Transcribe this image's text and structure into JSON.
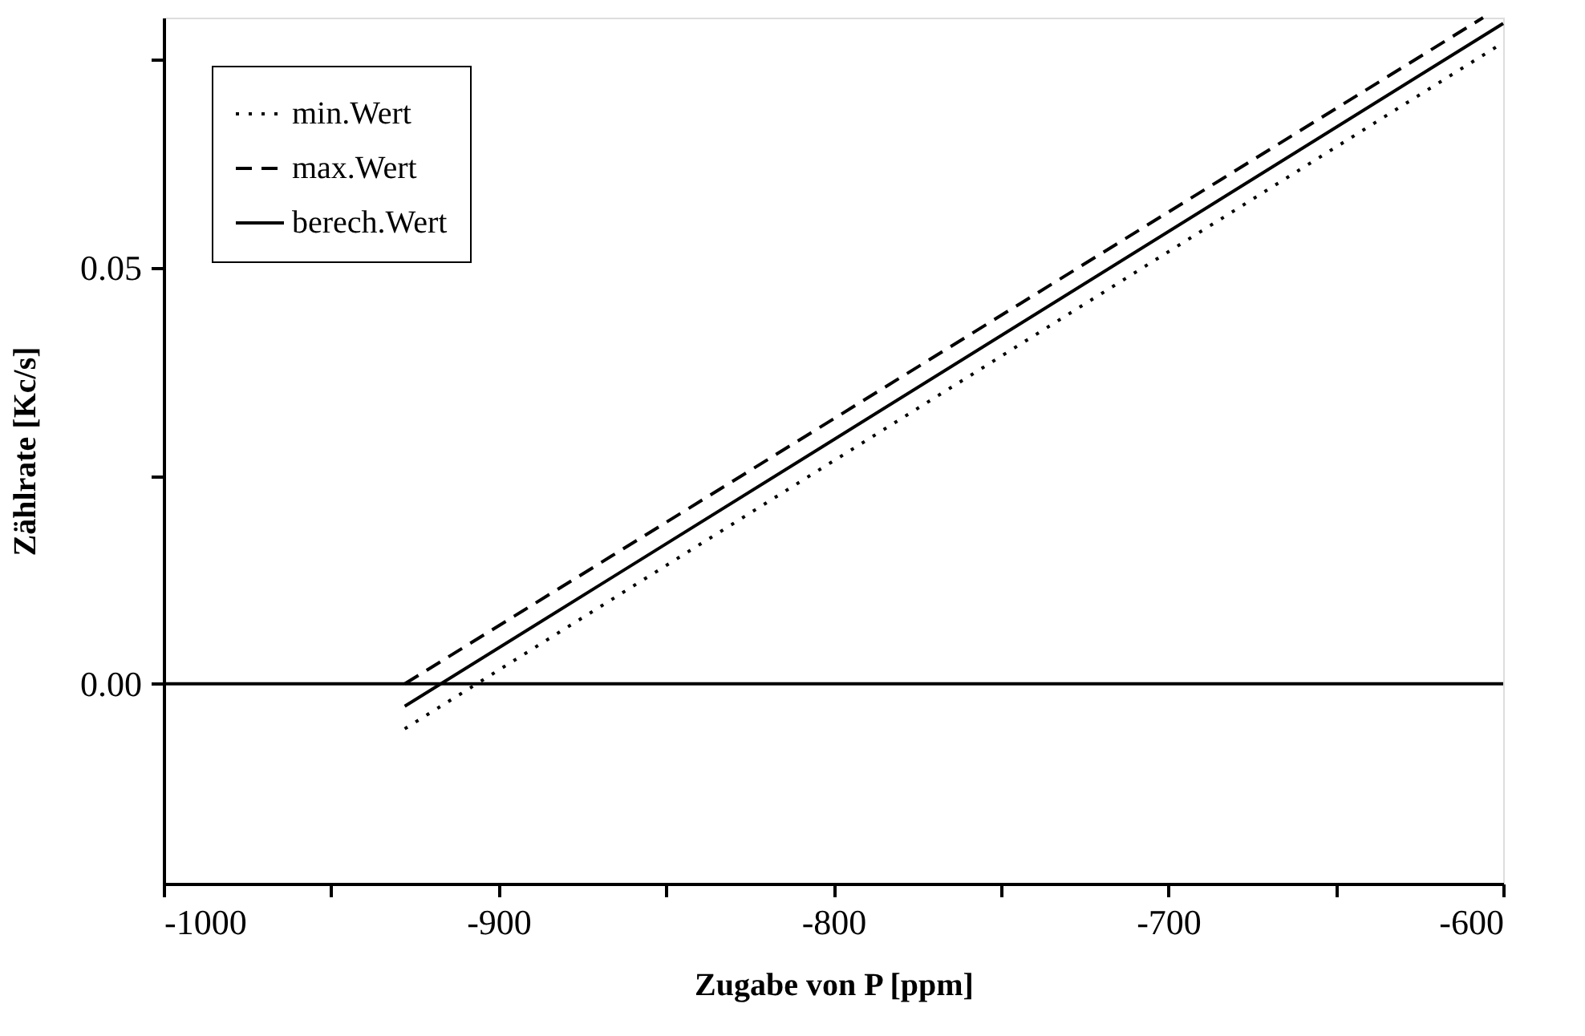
{
  "chart_data": {
    "type": "line",
    "xlabel": "Zugabe von P [ppm]",
    "ylabel": "Zählrate [Kc/s]",
    "xlim": [
      -1000,
      -600
    ],
    "ylim": [
      -0.024,
      0.08
    ],
    "xticks": [
      -1000,
      {
        "value": -950,
        "label": null
      },
      -900,
      {
        "value": -850,
        "label": null
      },
      -800,
      {
        "value": -750,
        "label": null
      },
      -700,
      {
        "value": -650,
        "label": null
      },
      -600
    ],
    "yticks": [
      {
        "value": 0.0,
        "label": "0.00"
      },
      {
        "value": 0.025,
        "label": null
      },
      0.05,
      {
        "value": 0.075,
        "label": null
      }
    ],
    "grid": false,
    "legend": "top left",
    "marker": "none",
    "series": [
      {
        "name": "min.Wert",
        "color": "#000000",
        "line_style": "dotted",
        "x": [
          -928,
          -600
        ],
        "values": [
          -0.0054,
          0.077
        ]
      },
      {
        "name": "max.Wert",
        "color": "#000000",
        "line_style": "dashed",
        "x": [
          -928,
          -606
        ],
        "values": [
          0.0,
          0.08
        ]
      },
      {
        "name": "berech.Wert",
        "color": "#000000",
        "line_style": "solid",
        "x": [
          -928,
          -600
        ],
        "values": [
          -0.0027,
          0.0793
        ]
      }
    ],
    "ref_lines": [
      {
        "axis": "y",
        "value": 0.0,
        "color": "#000000",
        "line_style": "solid"
      }
    ]
  }
}
